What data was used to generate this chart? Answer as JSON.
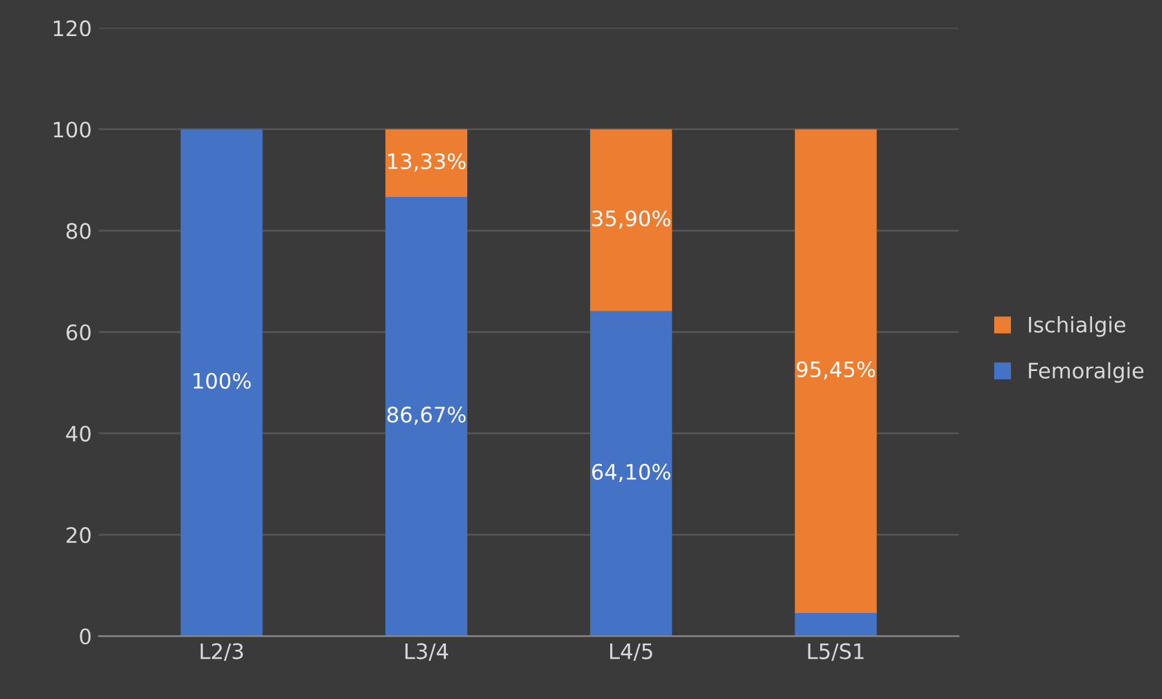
{
  "chart_data": {
    "type": "bar",
    "stacked": true,
    "categories": [
      "L2/3",
      "L3/4",
      "L4/5",
      "L5/S1"
    ],
    "series": [
      {
        "name": "Femoralgie",
        "color": "#4472c4",
        "values": [
          100,
          86.67,
          64.1,
          4.55
        ],
        "value_labels": [
          "100%",
          "86,67%",
          "64,10%",
          null
        ]
      },
      {
        "name": "Ischialgie",
        "color": "#ed7d31",
        "values": [
          0,
          13.33,
          35.9,
          95.45
        ],
        "value_labels": [
          null,
          "13,33%",
          "35,90%",
          "95,45%"
        ]
      }
    ],
    "ylim": [
      0,
      120
    ],
    "yticks": [
      0,
      20,
      40,
      60,
      80,
      100,
      120
    ],
    "grid": "y",
    "legend": "right"
  }
}
